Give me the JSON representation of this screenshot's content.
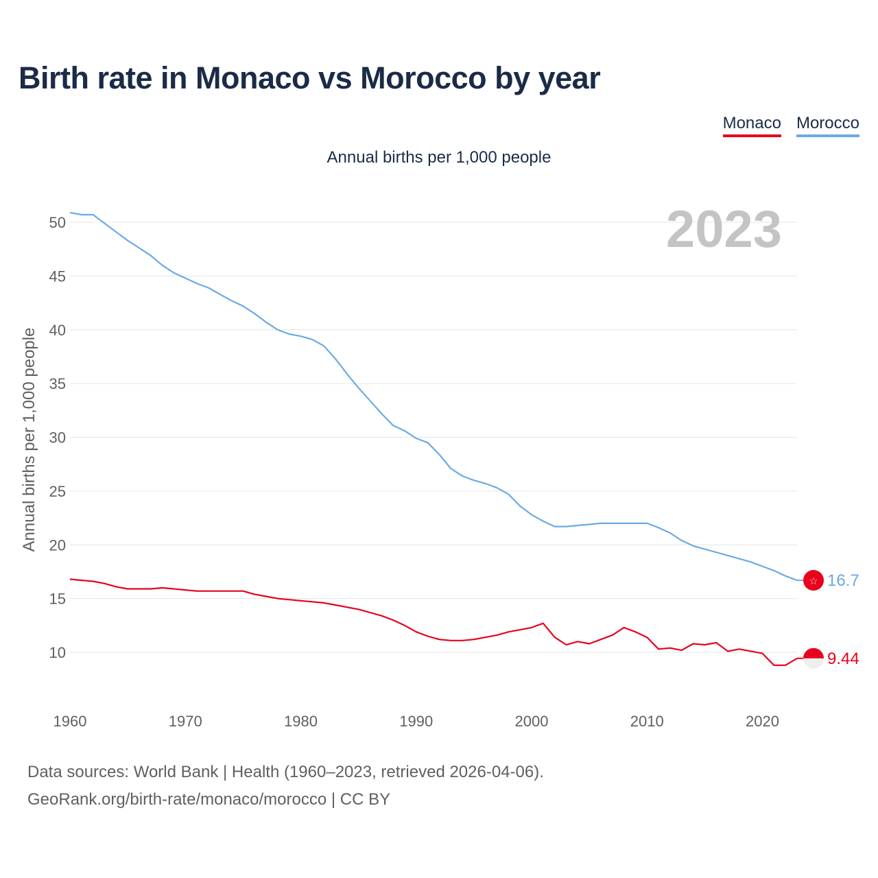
{
  "title": "Birth rate in Monaco vs Morocco by year",
  "legend": [
    {
      "label": "Monaco",
      "color": "#e8001c"
    },
    {
      "label": "Morocco",
      "color": "#6aaae4"
    }
  ],
  "subtitle": "Annual births per 1,000 people",
  "year_watermark": "2023",
  "source_line1": "Data sources: World Bank | Health (1960–2023, retrieved 2026-04-06).",
  "source_line2": "GeoRank.org/birth-rate/monaco/morocco | CC BY",
  "chart_data": {
    "type": "line",
    "title": "Birth rate in Monaco vs Morocco by year",
    "xlabel": "",
    "ylabel": "Annual births per 1,000 people",
    "xlim": [
      1960,
      2023
    ],
    "ylim": [
      5.5,
      52.5
    ],
    "xticks": [
      1960,
      1970,
      1980,
      1990,
      2000,
      2010,
      2020
    ],
    "yticks": [
      10,
      15,
      20,
      25,
      30,
      35,
      40,
      45,
      50
    ],
    "grid": true,
    "x": [
      1960,
      1961,
      1962,
      1963,
      1964,
      1965,
      1966,
      1967,
      1968,
      1969,
      1970,
      1971,
      1972,
      1973,
      1974,
      1975,
      1976,
      1977,
      1978,
      1979,
      1980,
      1981,
      1982,
      1983,
      1984,
      1985,
      1986,
      1987,
      1988,
      1989,
      1990,
      1991,
      1992,
      1993,
      1994,
      1995,
      1996,
      1997,
      1998,
      1999,
      2000,
      2001,
      2002,
      2003,
      2004,
      2005,
      2006,
      2007,
      2008,
      2009,
      2010,
      2011,
      2012,
      2013,
      2014,
      2015,
      2016,
      2017,
      2018,
      2019,
      2020,
      2021,
      2022,
      2023
    ],
    "series": [
      {
        "name": "Monaco",
        "color": "#e8001c",
        "end_label": "9.44",
        "values": [
          16.8,
          16.7,
          16.6,
          16.4,
          16.1,
          15.9,
          15.9,
          15.9,
          16.0,
          15.9,
          15.8,
          15.7,
          15.7,
          15.7,
          15.7,
          15.7,
          15.4,
          15.2,
          15.0,
          14.9,
          14.8,
          14.7,
          14.6,
          14.4,
          14.2,
          14.0,
          13.7,
          13.4,
          13.0,
          12.5,
          11.9,
          11.5,
          11.2,
          11.1,
          11.1,
          11.2,
          11.4,
          11.6,
          11.9,
          12.1,
          12.3,
          12.7,
          11.4,
          10.7,
          11.0,
          10.8,
          11.2,
          11.6,
          12.3,
          11.9,
          11.4,
          10.3,
          10.4,
          10.2,
          10.8,
          10.7,
          10.9,
          10.1,
          10.3,
          10.1,
          9.9,
          8.8,
          8.8,
          9.44
        ]
      },
      {
        "name": "Morocco",
        "color": "#6aaae4",
        "end_label": "16.7",
        "values": [
          50.9,
          50.7,
          50.7,
          49.9,
          49.1,
          48.3,
          47.6,
          46.9,
          46.0,
          45.3,
          44.8,
          44.3,
          43.9,
          43.3,
          42.7,
          42.2,
          41.5,
          40.7,
          40.0,
          39.6,
          39.4,
          39.1,
          38.5,
          37.3,
          35.9,
          34.6,
          33.4,
          32.2,
          31.1,
          30.6,
          29.9,
          29.5,
          28.4,
          27.1,
          26.4,
          26.0,
          25.7,
          25.3,
          24.7,
          23.6,
          22.8,
          22.2,
          21.7,
          21.7,
          21.8,
          21.9,
          22.0,
          22.0,
          22.0,
          22.0,
          22.0,
          21.6,
          21.1,
          20.4,
          19.9,
          19.6,
          19.3,
          19.0,
          18.7,
          18.4,
          18.0,
          17.6,
          17.1,
          16.7
        ]
      }
    ]
  }
}
